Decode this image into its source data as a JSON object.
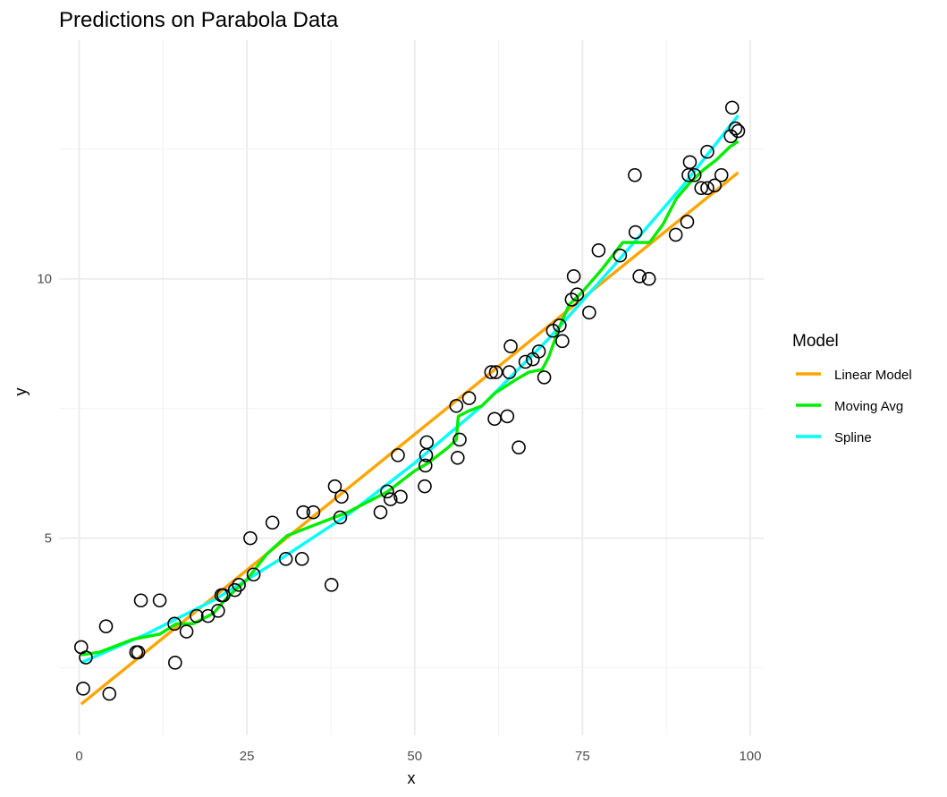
{
  "chart_data": {
    "type": "scatter",
    "title": "Predictions on Parabola Data",
    "xlabel": "x",
    "ylabel": "y",
    "xlim": [
      -3,
      102
    ],
    "ylim": [
      1.2,
      14.6
    ],
    "xticks": [
      0,
      25,
      50,
      75,
      100
    ],
    "yticks": [
      5,
      10
    ],
    "grid": true,
    "legend": {
      "title": "Model",
      "placement": "right"
    },
    "points": [
      [
        0.3,
        2.9
      ],
      [
        0.6,
        2.1
      ],
      [
        1.0,
        2.7
      ],
      [
        4.0,
        3.3
      ],
      [
        4.5,
        2.0
      ],
      [
        8.5,
        2.8
      ],
      [
        8.8,
        2.8
      ],
      [
        9.2,
        3.8
      ],
      [
        12.0,
        3.8
      ],
      [
        14.2,
        3.35
      ],
      [
        14.3,
        2.6
      ],
      [
        16.0,
        3.2
      ],
      [
        17.5,
        3.5
      ],
      [
        19.2,
        3.5
      ],
      [
        20.7,
        3.6
      ],
      [
        21.2,
        3.9
      ],
      [
        21.5,
        3.9
      ],
      [
        23.2,
        4.0
      ],
      [
        23.8,
        4.1
      ],
      [
        25.5,
        5.0
      ],
      [
        26.0,
        4.3
      ],
      [
        28.8,
        5.3
      ],
      [
        30.8,
        4.6
      ],
      [
        33.2,
        4.6
      ],
      [
        33.4,
        5.5
      ],
      [
        34.9,
        5.5
      ],
      [
        37.6,
        4.1
      ],
      [
        38.1,
        6.0
      ],
      [
        38.9,
        5.4
      ],
      [
        39.1,
        5.8
      ],
      [
        44.9,
        5.5
      ],
      [
        45.9,
        5.9
      ],
      [
        46.4,
        5.75
      ],
      [
        47.5,
        6.6
      ],
      [
        47.9,
        5.8
      ],
      [
        51.5,
        6.0
      ],
      [
        51.6,
        6.4
      ],
      [
        51.7,
        6.6
      ],
      [
        51.8,
        6.85
      ],
      [
        56.2,
        7.55
      ],
      [
        56.4,
        6.55
      ],
      [
        56.7,
        6.9
      ],
      [
        58.1,
        7.7
      ],
      [
        61.4,
        8.2
      ],
      [
        61.9,
        7.3
      ],
      [
        62.1,
        8.2
      ],
      [
        63.8,
        7.35
      ],
      [
        64.1,
        8.2
      ],
      [
        64.3,
        8.7
      ],
      [
        65.5,
        6.75
      ],
      [
        66.5,
        8.4
      ],
      [
        67.6,
        8.45
      ],
      [
        68.5,
        8.6
      ],
      [
        69.3,
        8.1
      ],
      [
        70.6,
        9.0
      ],
      [
        71.6,
        9.1
      ],
      [
        72.0,
        8.8
      ],
      [
        73.4,
        9.6
      ],
      [
        73.7,
        10.05
      ],
      [
        74.2,
        9.7
      ],
      [
        76.0,
        9.35
      ],
      [
        77.4,
        10.55
      ],
      [
        80.6,
        10.45
      ],
      [
        82.8,
        12.0
      ],
      [
        82.9,
        10.9
      ],
      [
        83.5,
        10.05
      ],
      [
        84.9,
        10.0
      ],
      [
        88.9,
        10.85
      ],
      [
        90.6,
        11.1
      ],
      [
        90.8,
        12.0
      ],
      [
        91.0,
        12.25
      ],
      [
        91.7,
        12.0
      ],
      [
        92.7,
        11.75
      ],
      [
        93.6,
        12.45
      ],
      [
        93.6,
        11.75
      ],
      [
        94.7,
        11.8
      ],
      [
        95.7,
        12.0
      ],
      [
        97.1,
        12.75
      ],
      [
        97.3,
        13.3
      ],
      [
        97.8,
        12.9
      ],
      [
        98.2,
        12.85
      ]
    ],
    "series": [
      {
        "name": "Linear Model",
        "color": "#FFA500",
        "x": [
          0.3,
          98.2
        ],
        "y": [
          1.8,
          12.05
        ]
      },
      {
        "name": "Moving Avg",
        "color": "#00EE00",
        "x": [
          0.3,
          3,
          8,
          12,
          14.5,
          17,
          20,
          22,
          25,
          28,
          31,
          35,
          38,
          40,
          43,
          46,
          48,
          50,
          52,
          55,
          56.2,
          56.5,
          58,
          60,
          62,
          65,
          67,
          69,
          70,
          71.5,
          73,
          75,
          78,
          81,
          83,
          85,
          87,
          89,
          91,
          93,
          95,
          97,
          98.2
        ],
        "y": [
          2.75,
          2.8,
          3.05,
          3.15,
          3.35,
          3.35,
          3.55,
          3.85,
          4.2,
          4.7,
          5.05,
          5.25,
          5.4,
          5.5,
          5.7,
          5.9,
          6.1,
          6.3,
          6.45,
          6.75,
          6.9,
          7.35,
          7.45,
          7.55,
          7.8,
          8.05,
          8.2,
          8.25,
          8.5,
          9.05,
          9.5,
          9.75,
          10.2,
          10.7,
          10.7,
          10.7,
          11.05,
          11.55,
          11.85,
          12.1,
          12.3,
          12.55,
          12.65
        ]
      },
      {
        "name": "Spline",
        "color": "#00FFFF",
        "x": [
          0.3,
          10,
          20,
          30,
          40,
          50,
          60,
          70,
          80,
          90,
          98.2
        ],
        "y": [
          2.6,
          3.15,
          3.8,
          4.6,
          5.45,
          6.45,
          7.55,
          8.85,
          10.3,
          11.8,
          13.15
        ]
      }
    ]
  }
}
